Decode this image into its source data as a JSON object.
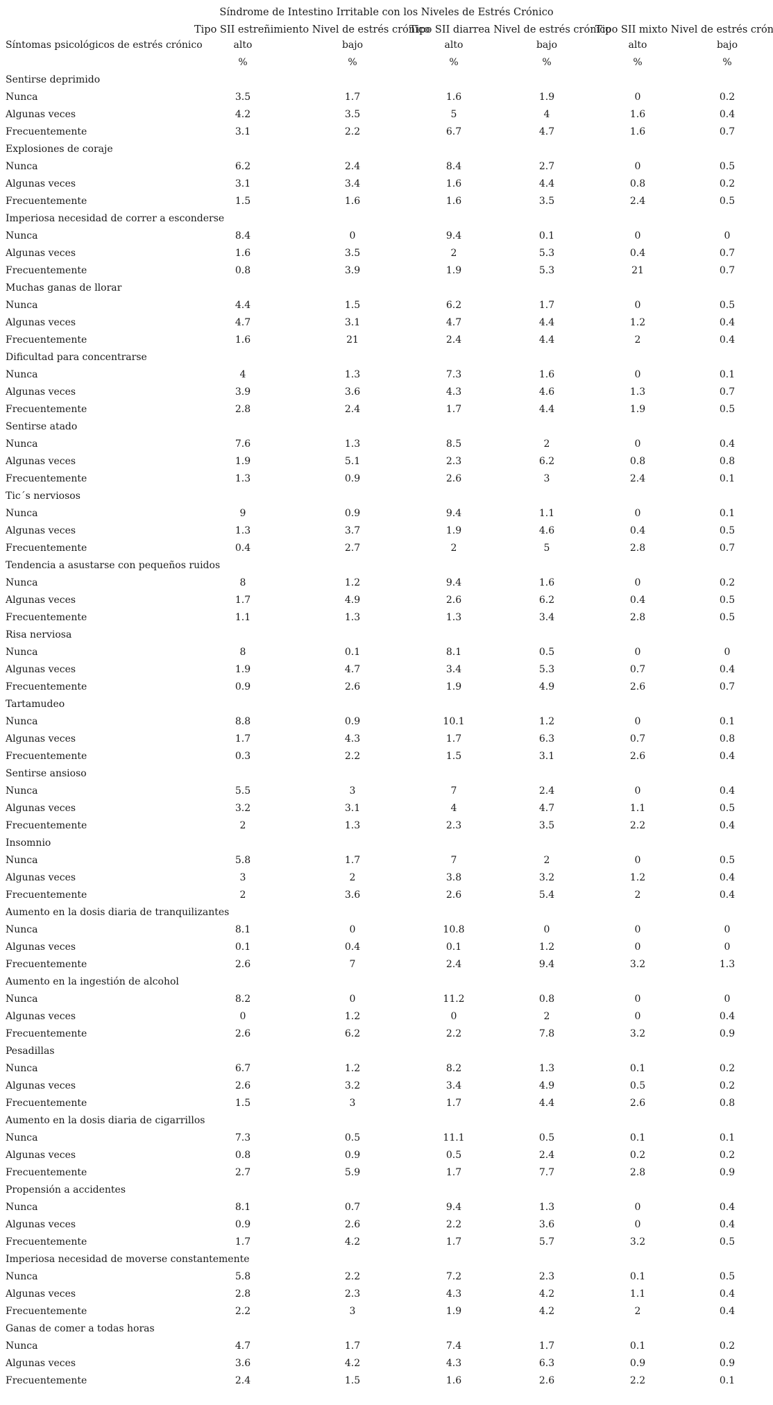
{
  "title": "Síndrome de Intestino Irritable con los Niveles de Estrés Crónico",
  "group_headers": [
    "Tipo SII estreñimiento Nivel de estrés crónico",
    "Tipo SII diarrea Nivel de estrés crónico",
    "Tipo SII mixto Nivel de estrés crónico"
  ],
  "row_label_header": "Síntomas psicológicos de estrés crónico",
  "level_labels": [
    "alto",
    "bajo",
    "alto",
    "bajo",
    "alto",
    "bajo"
  ],
  "unit_labels": [
    "%",
    "%",
    "%",
    "%",
    "%",
    "%"
  ],
  "sections": [
    {
      "title": "Sentirse deprimido",
      "rows": [
        {
          "label": "Nunca",
          "values": [
            "3.5",
            "1.7",
            "1.6",
            "1.9",
            "0",
            "0.2"
          ]
        },
        {
          "label": "Algunas veces",
          "values": [
            "4.2",
            "3.5",
            "5",
            "4",
            "1.6",
            "0.4"
          ]
        },
        {
          "label": "Frecuentemente",
          "values": [
            "3.1",
            "2.2",
            "6.7",
            "4.7",
            "1.6",
            "0.7"
          ]
        }
      ]
    },
    {
      "title": "Explosiones de coraje",
      "rows": [
        {
          "label": "Nunca",
          "values": [
            "6.2",
            "2.4",
            "8.4",
            "2.7",
            "0",
            "0.5"
          ]
        },
        {
          "label": "Algunas veces",
          "values": [
            "3.1",
            "3.4",
            "1.6",
            "4.4",
            "0.8",
            "0.2"
          ]
        },
        {
          "label": "Frecuentemente",
          "values": [
            "1.5",
            "1.6",
            "1.6",
            "3.5",
            "2.4",
            "0.5"
          ]
        }
      ]
    },
    {
      "title": "Imperiosa necesidad de correr a esconderse",
      "rows": [
        {
          "label": "Nunca",
          "values": [
            "8.4",
            "0",
            "9.4",
            "0.1",
            "0",
            "0"
          ]
        },
        {
          "label": "Algunas veces",
          "values": [
            "1.6",
            "3.5",
            "2",
            "5.3",
            "0.4",
            "0.7"
          ]
        },
        {
          "label": "Frecuentemente",
          "values": [
            "0.8",
            "3.9",
            "1.9",
            "5.3",
            "21",
            "0.7"
          ]
        }
      ]
    },
    {
      "title": "Muchas ganas de llorar",
      "rows": [
        {
          "label": "Nunca",
          "values": [
            "4.4",
            "1.5",
            "6.2",
            "1.7",
            "0",
            "0.5"
          ]
        },
        {
          "label": "Algunas veces",
          "values": [
            "4.7",
            "3.1",
            "4.7",
            "4.4",
            "1.2",
            "0.4"
          ]
        },
        {
          "label": "Frecuentemente",
          "values": [
            "1.6",
            "21",
            "2.4",
            "4.4",
            "2",
            "0.4"
          ]
        }
      ]
    },
    {
      "title": "Dificultad para concentrarse",
      "rows": [
        {
          "label": "Nunca",
          "values": [
            "4",
            "1.3",
            "7.3",
            "1.6",
            "0",
            "0.1"
          ]
        },
        {
          "label": "Algunas veces",
          "values": [
            "3.9",
            "3.6",
            "4.3",
            "4.6",
            "1.3",
            "0.7"
          ]
        },
        {
          "label": "Frecuentemente",
          "values": [
            "2.8",
            "2.4",
            "1.7",
            "4.4",
            "1.9",
            "0.5"
          ]
        }
      ]
    },
    {
      "title": "Sentirse atado",
      "rows": [
        {
          "label": "Nunca",
          "values": [
            "7.6",
            "1.3",
            "8.5",
            "2",
            "0",
            "0.4"
          ]
        },
        {
          "label": "Algunas veces",
          "values": [
            "1.9",
            "5.1",
            "2.3",
            "6.2",
            "0.8",
            "0.8"
          ]
        },
        {
          "label": "Frecuentemente",
          "values": [
            "1.3",
            "0.9",
            "2.6",
            "3",
            "2.4",
            "0.1"
          ]
        }
      ]
    },
    {
      "title": "Tic´s nerviosos",
      "rows": [
        {
          "label": "Nunca",
          "values": [
            "9",
            "0.9",
            "9.4",
            "1.1",
            "0",
            "0.1"
          ]
        },
        {
          "label": "Algunas veces",
          "values": [
            "1.3",
            "3.7",
            "1.9",
            "4.6",
            "0.4",
            "0.5"
          ]
        },
        {
          "label": "Frecuentemente",
          "values": [
            "0.4",
            "2.7",
            "2",
            "5",
            "2.8",
            "0.7"
          ]
        }
      ]
    },
    {
      "title": "Tendencia a asustarse con pequeños ruidos",
      "rows": [
        {
          "label": "Nunca",
          "values": [
            "8",
            "1.2",
            "9.4",
            "1.6",
            "0",
            "0.2"
          ]
        },
        {
          "label": "Algunas veces",
          "values": [
            "1.7",
            "4.9",
            "2.6",
            "6.2",
            "0.4",
            "0.5"
          ]
        },
        {
          "label": "Frecuentemente",
          "values": [
            "1.1",
            "1.3",
            "1.3",
            "3.4",
            "2.8",
            "0.5"
          ]
        }
      ]
    },
    {
      "title": "Risa nerviosa",
      "rows": [
        {
          "label": "Nunca",
          "values": [
            "8",
            "0.1",
            "8.1",
            "0.5",
            "0",
            "0"
          ]
        },
        {
          "label": "Algunas veces",
          "values": [
            "1.9",
            "4.7",
            "3.4",
            "5.3",
            "0.7",
            "0.4"
          ]
        },
        {
          "label": "Frecuentemente",
          "values": [
            "0.9",
            "2.6",
            "1.9",
            "4.9",
            "2.6",
            "0.7"
          ]
        }
      ]
    },
    {
      "title": "Tartamudeo",
      "rows": [
        {
          "label": "Nunca",
          "values": [
            "8.8",
            "0.9",
            "10.1",
            "1.2",
            "0",
            "0.1"
          ]
        },
        {
          "label": "Algunas veces",
          "values": [
            "1.7",
            "4.3",
            "1.7",
            "6.3",
            "0.7",
            "0.8"
          ]
        },
        {
          "label": "Frecuentemente",
          "values": [
            "0.3",
            "2.2",
            "1.5",
            "3.1",
            "2.6",
            "0.4"
          ]
        }
      ]
    },
    {
      "title": "Sentirse ansioso",
      "rows": [
        {
          "label": "Nunca",
          "values": [
            "5.5",
            "3",
            "7",
            "2.4",
            "0",
            "0.4"
          ]
        },
        {
          "label": "Algunas veces",
          "values": [
            "3.2",
            "3.1",
            "4",
            "4.7",
            "1.1",
            "0.5"
          ]
        },
        {
          "label": "Frecuentemente",
          "values": [
            "2",
            "1.3",
            "2.3",
            "3.5",
            "2.2",
            "0.4"
          ]
        }
      ]
    },
    {
      "title": "Insomnio",
      "rows": [
        {
          "label": "Nunca",
          "values": [
            "5.8",
            "1.7",
            "7",
            "2",
            "0",
            "0.5"
          ]
        },
        {
          "label": "Algunas veces",
          "values": [
            "3",
            "2",
            "3.8",
            "3.2",
            "1.2",
            "0.4"
          ]
        },
        {
          "label": "Frecuentemente",
          "values": [
            "2",
            "3.6",
            "2.6",
            "5.4",
            "2",
            "0.4"
          ]
        }
      ]
    },
    {
      "title": "Aumento en la dosis diaria de tranquilizantes",
      "rows": [
        {
          "label": "Nunca",
          "values": [
            "8.1",
            "0",
            "10.8",
            "0",
            "0",
            "0"
          ]
        },
        {
          "label": "Algunas veces",
          "values": [
            "0.1",
            "0.4",
            "0.1",
            "1.2",
            "0",
            "0"
          ]
        },
        {
          "label": "Frecuentemente",
          "values": [
            "2.6",
            "7",
            "2.4",
            "9.4",
            "3.2",
            "1.3"
          ]
        }
      ]
    },
    {
      "title": "Aumento en la ingestión de alcohol",
      "rows": [
        {
          "label": "Nunca",
          "values": [
            "8.2",
            "0",
            "11.2",
            "0.8",
            "0",
            "0"
          ]
        },
        {
          "label": "Algunas veces",
          "values": [
            "0",
            "1.2",
            "0",
            "2",
            "0",
            "0.4"
          ]
        },
        {
          "label": "Frecuentemente",
          "values": [
            "2.6",
            "6.2",
            "2.2",
            "7.8",
            "3.2",
            "0.9"
          ]
        }
      ]
    },
    {
      "title": "Pesadillas",
      "rows": [
        {
          "label": "Nunca",
          "values": [
            "6.7",
            "1.2",
            "8.2",
            "1.3",
            "0.1",
            "0.2"
          ]
        },
        {
          "label": "Algunas veces",
          "values": [
            "2.6",
            "3.2",
            "3.4",
            "4.9",
            "0.5",
            "0.2"
          ]
        },
        {
          "label": "Frecuentemente",
          "values": [
            "1.5",
            "3",
            "1.7",
            "4.4",
            "2.6",
            "0.8"
          ]
        }
      ]
    },
    {
      "title": "Aumento en la dosis diaria de cigarrillos",
      "rows": [
        {
          "label": "Nunca",
          "values": [
            "7.3",
            "0.5",
            "11.1",
            "0.5",
            "0.1",
            "0.1"
          ]
        },
        {
          "label": "Algunas veces",
          "values": [
            "0.8",
            "0.9",
            "0.5",
            "2.4",
            "0.2",
            "0.2"
          ]
        },
        {
          "label": "Frecuentemente",
          "values": [
            "2.7",
            "5.9",
            "1.7",
            "7.7",
            "2.8",
            "0.9"
          ]
        }
      ]
    },
    {
      "title": "Propensión a accidentes",
      "rows": [
        {
          "label": "Nunca",
          "values": [
            "8.1",
            "0.7",
            "9.4",
            "1.3",
            "0",
            "0.4"
          ]
        },
        {
          "label": "Algunas veces",
          "values": [
            "0.9",
            "2.6",
            "2.2",
            "3.6",
            "0",
            "0.4"
          ]
        },
        {
          "label": "Frecuentemente",
          "values": [
            "1.7",
            "4.2",
            "1.7",
            "5.7",
            "3.2",
            "0.5"
          ]
        }
      ]
    },
    {
      "title": "Imperiosa necesidad de moverse constantemente",
      "rows": [
        {
          "label": "Nunca",
          "values": [
            "5.8",
            "2.2",
            "7.2",
            "2.3",
            "0.1",
            "0.5"
          ]
        },
        {
          "label": "Algunas veces",
          "values": [
            "2.8",
            "2.3",
            "4.3",
            "4.2",
            "1.1",
            "0.4"
          ]
        },
        {
          "label": "Frecuentemente",
          "values": [
            "2.2",
            "3",
            "1.9",
            "4.2",
            "2",
            "0.4"
          ]
        }
      ]
    },
    {
      "title": "Ganas de comer a todas horas",
      "rows": [
        {
          "label": "Nunca",
          "values": [
            "4.7",
            "1.7",
            "7.4",
            "1.7",
            "0.1",
            "0.2"
          ]
        },
        {
          "label": "Algunas veces",
          "values": [
            "3.6",
            "4.2",
            "4.3",
            "6.3",
            "0.9",
            "0.9"
          ]
        },
        {
          "label": "Frecuentemente",
          "values": [
            "2.4",
            "1.5",
            "1.6",
            "2.6",
            "2.2",
            "0.1"
          ]
        }
      ]
    }
  ]
}
